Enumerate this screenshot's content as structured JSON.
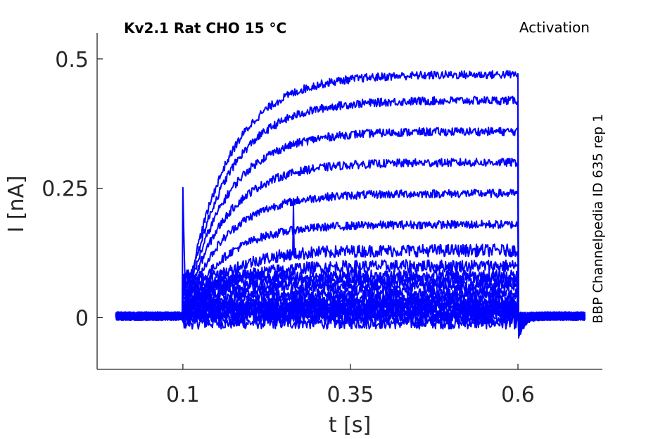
{
  "chart_data": {
    "type": "line",
    "title": "Kv2.1  Rat  CHO  15 °C",
    "subtitle": "Activation",
    "side_label": "BBP Channelpedia ID 635 rep 1",
    "xlabel": "t [s]",
    "ylabel": "I [nA]",
    "xlim": [
      -0.028,
      0.726
    ],
    "ylim": [
      -0.1,
      0.55
    ],
    "xticks": [
      0.1,
      0.35,
      0.6
    ],
    "xtick_labels": [
      "0.1",
      "0.35",
      "0.6"
    ],
    "yticks": [
      0,
      0.25,
      0.5
    ],
    "ytick_labels": [
      "0",
      "0.25",
      "0.5"
    ],
    "grid": false,
    "line_color": "#0000ff",
    "pulse_start": 0.1,
    "pulse_end": 0.6,
    "trace_start": 0.0,
    "trace_end": 0.7,
    "series_steady_state_nA": [
      -0.01,
      0.0,
      0.005,
      0.01,
      0.015,
      0.02,
      0.025,
      0.03,
      0.04,
      0.05,
      0.06,
      0.07,
      0.08,
      0.1,
      0.13,
      0.18,
      0.24,
      0.3,
      0.36,
      0.42,
      0.47
    ]
  }
}
